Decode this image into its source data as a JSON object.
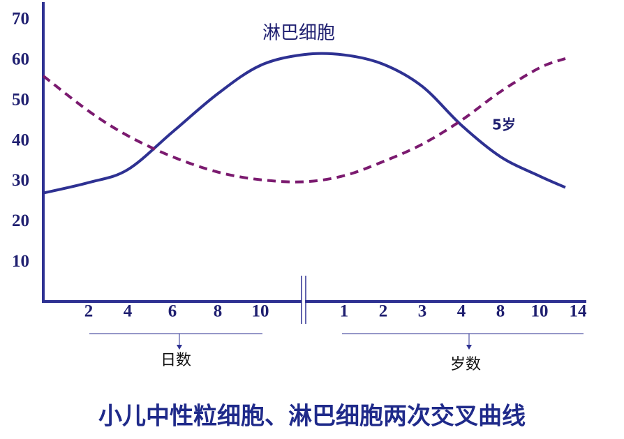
{
  "chart_data": {
    "type": "line",
    "title": "小儿中性粒细胞、淋巴细胞两次交叉曲线",
    "annotations": [
      "淋巴细胞",
      "5岁"
    ],
    "x_group_labels": [
      "日数",
      "岁数"
    ],
    "categories": [
      null,
      "2",
      "4",
      "6",
      "8",
      "10",
      null,
      "1",
      "2",
      "3",
      "4",
      "8",
      "10",
      "14"
    ],
    "series": [
      {
        "name": "淋巴细胞",
        "color": "#2e3192",
        "style": "solid",
        "values": [
          27.2,
          29.8,
          33,
          42.3,
          51.8,
          58.8,
          61.5,
          61.4,
          59.1,
          53.6,
          44,
          36.2,
          31.4,
          28.6
        ]
      },
      {
        "color": "#7b1a6f",
        "style": "dashed",
        "values": [
          56.2,
          47.5,
          41.4,
          36.2,
          32.4,
          30.5,
          30,
          31.5,
          35,
          39.3,
          45.2,
          52.3,
          58.2,
          60.5
        ]
      }
    ],
    "ylim": [
      0,
      75
    ],
    "yticks": [
      10,
      20,
      30,
      40,
      50,
      60,
      70
    ],
    "grid": false
  }
}
